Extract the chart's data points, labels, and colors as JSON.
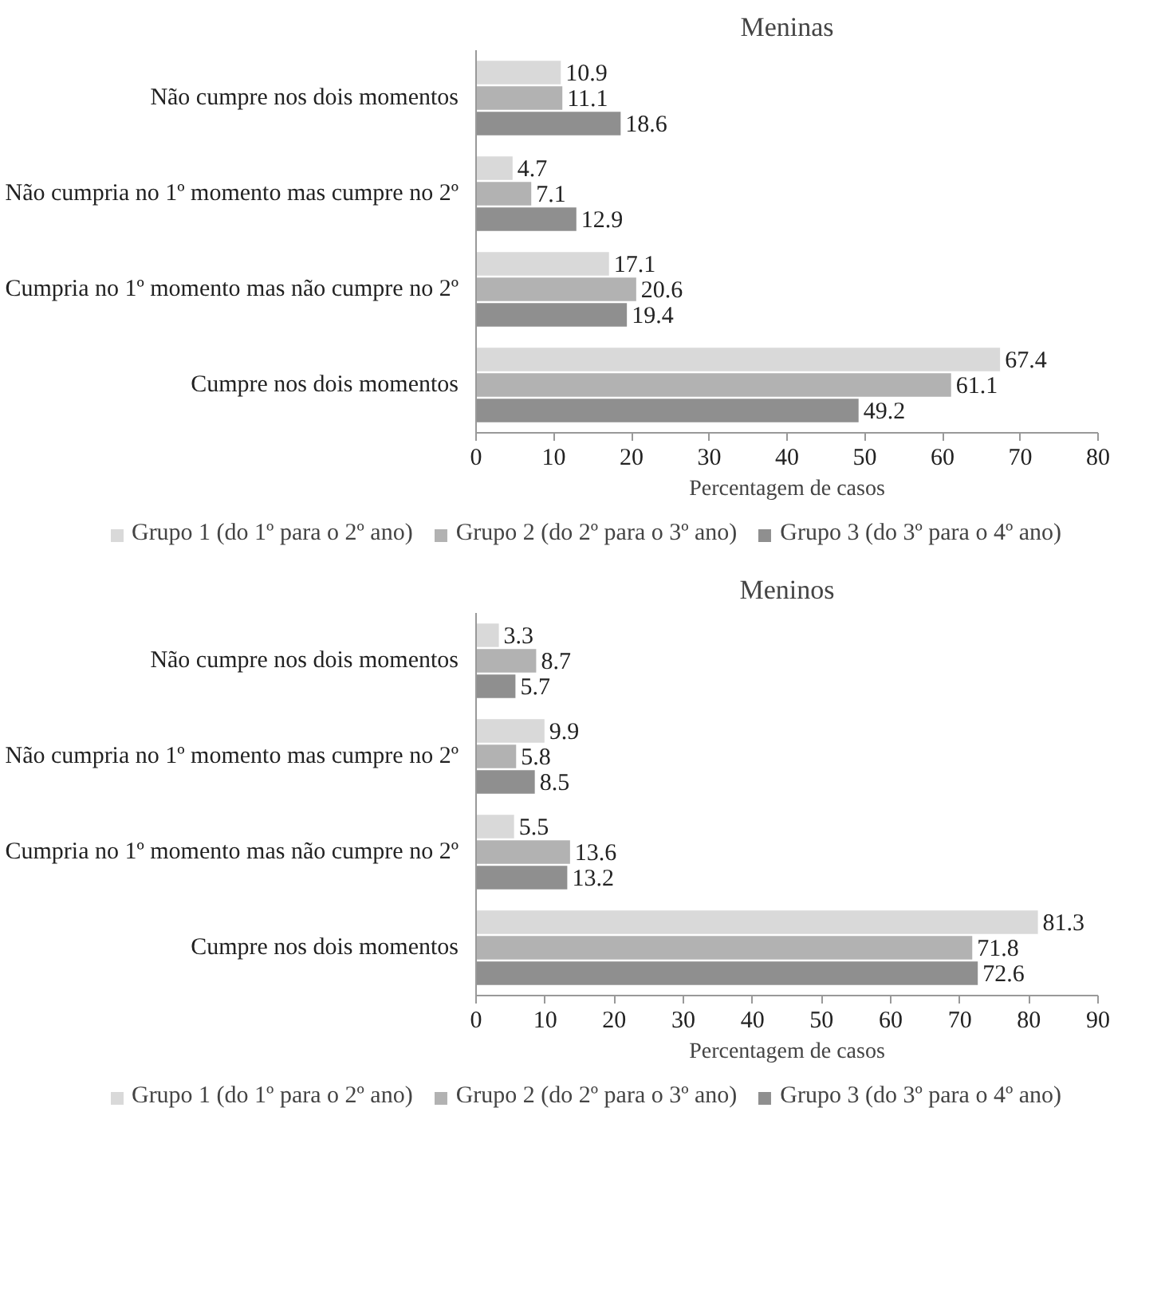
{
  "chart_data": [
    {
      "type": "bar",
      "orientation": "horizontal",
      "title": "Meninas",
      "xlabel": "Percentagem de casos",
      "categories": [
        "Não cumpre nos dois momentos",
        "Não cumpria no 1º momento mas cumpre no 2º",
        "Cumpria no 1º momento mas não cumpre no 2º",
        "Cumpre nos dois momentos"
      ],
      "series": [
        {
          "name": "Grupo 1 (do 1º para o 2º ano)",
          "color": "#d9d9d9",
          "values": [
            10.9,
            4.7,
            17.1,
            67.4
          ]
        },
        {
          "name": "Grupo 2 (do 2º para o 3º ano)",
          "color": "#b2b2b2",
          "values": [
            11.1,
            7.1,
            20.6,
            61.1
          ]
        },
        {
          "name": "Grupo 3 (do 3º para o 4º ano)",
          "color": "#8f8f8f",
          "values": [
            18.6,
            12.9,
            19.4,
            49.2
          ]
        }
      ],
      "xlim": [
        0,
        80
      ],
      "xticks": [
        0,
        10,
        20,
        30,
        40,
        50,
        60,
        70,
        80
      ],
      "data_labels": true,
      "legend": "bottom",
      "grid": false
    },
    {
      "type": "bar",
      "orientation": "horizontal",
      "title": "Meninos",
      "xlabel": "Percentagem de casos",
      "categories": [
        "Não cumpre nos dois momentos",
        "Não cumpria no 1º momento mas cumpre no 2º",
        "Cumpria no 1º momento mas não cumpre no 2º",
        "Cumpre nos dois momentos"
      ],
      "series": [
        {
          "name": "Grupo 1 (do 1º para o 2º ano)",
          "color": "#d9d9d9",
          "values": [
            3.3,
            9.9,
            5.5,
            81.3
          ]
        },
        {
          "name": "Grupo 2 (do 2º para o 3º ano)",
          "color": "#b2b2b2",
          "values": [
            8.7,
            5.8,
            13.6,
            71.8
          ]
        },
        {
          "name": "Grupo 3 (do 3º para o 4º ano)",
          "color": "#8f8f8f",
          "values": [
            5.7,
            8.5,
            13.2,
            72.6
          ]
        }
      ],
      "xlim": [
        0,
        90
      ],
      "xticks": [
        0,
        10,
        20,
        30,
        40,
        50,
        60,
        70,
        80,
        90
      ],
      "data_labels": true,
      "legend": "bottom",
      "grid": false
    }
  ]
}
